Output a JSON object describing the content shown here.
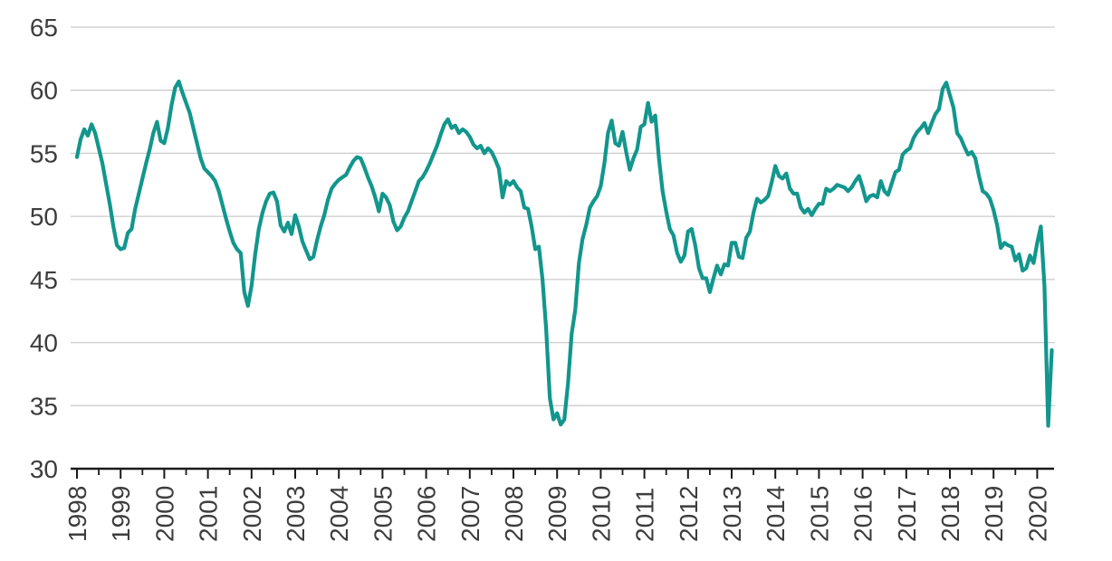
{
  "chart_data": {
    "type": "line",
    "title": "",
    "xlabel": "",
    "ylabel": "",
    "ylim": [
      30,
      65
    ],
    "grid": true,
    "legend": false,
    "x_axis": {
      "tick_labels": [
        "1998",
        "1999",
        "2000",
        "2001",
        "2002",
        "2003",
        "2004",
        "2005",
        "2006",
        "2007",
        "2008",
        "2009",
        "2010",
        "2011",
        "2012",
        "2013",
        "2014",
        "2015",
        "2016",
        "2017",
        "2018",
        "2019",
        "2020"
      ],
      "minor_ticks_between_years": true,
      "label_rotation_degrees": -90
    },
    "y_axis": {
      "tick_labels": [
        "65",
        "60",
        "55",
        "50",
        "45",
        "40",
        "35",
        "30"
      ],
      "tick_values": [
        65,
        60,
        55,
        50,
        45,
        40,
        35,
        30
      ],
      "gridline_values": [
        65,
        60,
        55,
        50,
        45,
        40,
        35
      ]
    },
    "series": [
      {
        "frequency": "monthly",
        "start_month": "1998-01",
        "end_month": "2020-05",
        "color": "#12968d",
        "values": [
          54.7,
          56.1,
          56.9,
          56.4,
          57.3,
          56.6,
          55.4,
          54.2,
          52.6,
          51.0,
          49.2,
          47.7,
          47.4,
          47.5,
          48.7,
          49.0,
          50.6,
          51.8,
          53.0,
          54.2,
          55.3,
          56.6,
          57.5,
          56.0,
          55.8,
          57.0,
          58.8,
          60.2,
          60.7,
          59.8,
          59.0,
          58.2,
          57.0,
          55.8,
          54.6,
          53.8,
          53.5,
          53.2,
          52.8,
          52.0,
          50.9,
          49.8,
          48.8,
          47.9,
          47.4,
          47.1,
          44.0,
          42.9,
          44.5,
          47.0,
          49.0,
          50.3,
          51.2,
          51.8,
          51.9,
          51.2,
          49.3,
          48.8,
          49.5,
          48.6,
          50.1,
          49.2,
          48.0,
          47.3,
          46.6,
          46.8,
          48.1,
          49.2,
          50.1,
          51.3,
          52.2,
          52.6,
          52.9,
          53.1,
          53.3,
          53.9,
          54.4,
          54.7,
          54.6,
          53.9,
          53.1,
          52.4,
          51.5,
          50.4,
          51.8,
          51.5,
          50.9,
          49.6,
          48.9,
          49.2,
          49.9,
          50.4,
          51.2,
          52.0,
          52.8,
          53.1,
          53.6,
          54.2,
          54.9,
          55.6,
          56.5,
          57.3,
          57.7,
          57.0,
          57.2,
          56.6,
          56.9,
          56.7,
          56.3,
          55.7,
          55.4,
          55.6,
          55.0,
          55.4,
          55.1,
          54.5,
          53.8,
          51.5,
          52.8,
          52.5,
          52.8,
          52.3,
          52.0,
          50.7,
          50.6,
          49.2,
          47.4,
          47.6,
          45.0,
          41.1,
          35.6,
          33.9,
          34.4,
          33.5,
          33.9,
          36.8,
          40.7,
          42.6,
          46.3,
          48.2,
          49.3,
          50.7,
          51.2,
          51.6,
          52.4,
          54.2,
          56.6,
          57.6,
          55.8,
          55.6,
          56.7,
          55.1,
          53.7,
          54.6,
          55.3,
          57.1,
          57.3,
          59.0,
          57.5,
          58.0,
          54.6,
          52.0,
          50.4,
          49.0,
          48.5,
          47.1,
          46.4,
          46.9,
          48.8,
          49.0,
          47.7,
          45.9,
          45.1,
          45.1,
          44.0,
          45.1,
          46.1,
          45.4,
          46.2,
          46.1,
          47.9,
          47.9,
          46.8,
          46.7,
          48.3,
          48.8,
          50.3,
          51.4,
          51.1,
          51.3,
          51.6,
          52.7,
          54.0,
          53.2,
          53.0,
          53.4,
          52.2,
          51.8,
          51.8,
          50.7,
          50.3,
          50.6,
          50.1,
          50.6,
          51.0,
          51.0,
          52.2,
          52.0,
          52.2,
          52.5,
          52.4,
          52.3,
          52.0,
          52.3,
          52.8,
          53.2,
          52.3,
          51.2,
          51.6,
          51.7,
          51.5,
          52.8,
          52.0,
          51.7,
          52.6,
          53.5,
          53.7,
          54.9,
          55.2,
          55.4,
          56.2,
          56.7,
          57.0,
          57.4,
          56.6,
          57.4,
          58.1,
          58.5,
          60.1,
          60.6,
          59.6,
          58.6,
          56.6,
          56.2,
          55.5,
          54.9,
          55.1,
          54.6,
          53.2,
          52.0,
          51.8,
          51.4,
          50.5,
          49.3,
          47.5,
          47.9,
          47.7,
          47.6,
          46.5,
          47.0,
          45.7,
          45.9,
          46.9,
          46.3,
          47.9,
          49.2,
          44.5,
          33.4,
          39.4
        ]
      }
    ]
  },
  "colors": {
    "line": "#12968d",
    "gridline": "#cccccc",
    "axis": "#1a1a1a",
    "tick": "#1a1a1a",
    "label": "#3d3d3d",
    "background": "#ffffff"
  }
}
